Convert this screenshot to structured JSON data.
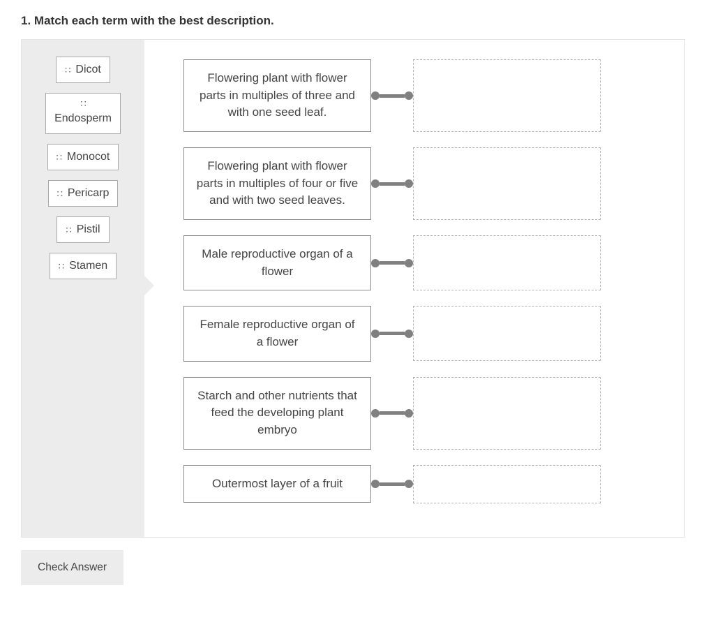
{
  "question": {
    "number": "1.",
    "prompt": "Match each term with the best description."
  },
  "terms": [
    {
      "label": "Dicot",
      "multiline": false
    },
    {
      "label": "Endosperm",
      "multiline": true
    },
    {
      "label": "Monocot",
      "multiline": false
    },
    {
      "label": "Pericarp",
      "multiline": false
    },
    {
      "label": "Pistil",
      "multiline": false
    },
    {
      "label": "Stamen",
      "multiline": false
    }
  ],
  "descriptions": [
    "Flowering plant with flower parts in multiples of three and with one seed leaf.",
    "Flowering plant with flower parts in multiples of four or five and with two seed leaves.",
    "Male reproductive organ of a flower",
    "Female reproductive organ of a flower",
    "Starch and other nutrients that feed the developing plant embryo",
    "Outermost layer of a fruit"
  ],
  "buttons": {
    "check": "Check Answer"
  },
  "colors": {
    "panel_border": "#e3e3e3",
    "terms_bg": "#ececec",
    "box_border": "#8a8a8a",
    "drop_border": "#b0b0b0",
    "connector": "#808080",
    "text": "#444444"
  },
  "layout": {
    "desc_box_width": 269,
    "drop_zone_width": 269,
    "terms_col_width": 176,
    "connector_width": 60
  }
}
